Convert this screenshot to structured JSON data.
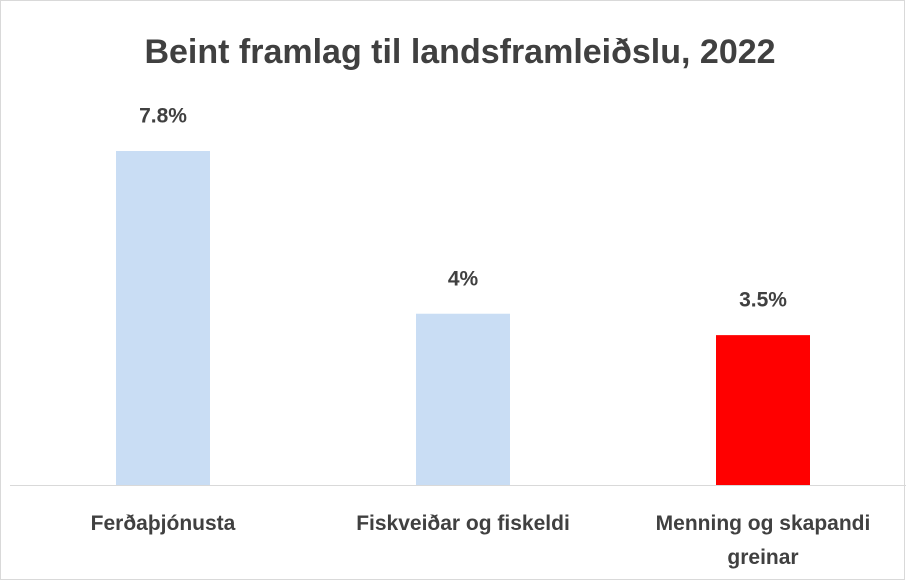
{
  "chart_data": {
    "type": "bar",
    "title": "Beint framlag til landsframleiðslu, 2022",
    "categories": [
      "Ferðaþjónusta",
      "Fiskveiðar og fiskeldi",
      "Menning og skapandi greinar"
    ],
    "values": [
      7.8,
      4,
      3.5
    ],
    "value_labels": [
      "7.8%",
      "4%",
      "3.5%"
    ],
    "colors": [
      "#c9ddf4",
      "#c9ddf4",
      "#ff0000"
    ]
  }
}
